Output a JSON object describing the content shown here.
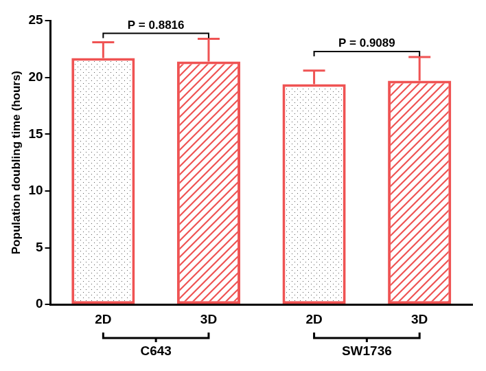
{
  "chart_data": {
    "type": "bar",
    "y_label": "Population doubling time (hours)",
    "categories": [
      "2D",
      "3D",
      "2D",
      "3D"
    ],
    "values": [
      21.7,
      21.4,
      19.4,
      19.7
    ],
    "errors": [
      1.4,
      2.0,
      1.2,
      2.1
    ],
    "color": "#ef5353",
    "groups": [
      {
        "label": "C643",
        "categories": [
          0,
          1
        ],
        "p_label": "P = 0.8816"
      },
      {
        "label": "SW1736",
        "categories": [
          2,
          3
        ],
        "p_label": "P = 0.9089"
      }
    ],
    "ylim": [
      0,
      25
    ],
    "yticks": [
      0,
      5,
      10,
      15,
      20,
      25
    ],
    "grid": false
  }
}
